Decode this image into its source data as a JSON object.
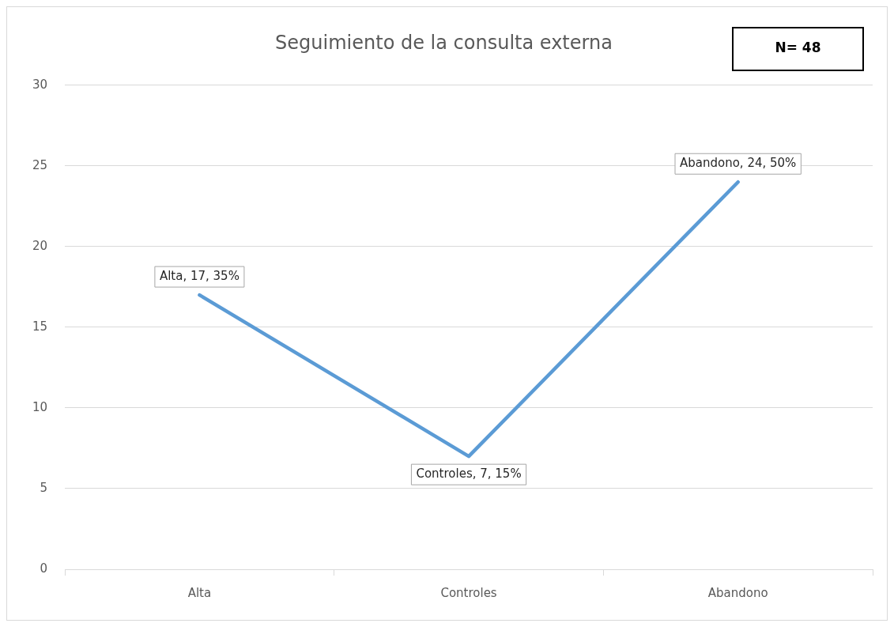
{
  "chart_data": {
    "type": "line",
    "title": "Seguimiento de la consulta externa",
    "categories": [
      "Alta",
      "Controles",
      "Abandono"
    ],
    "values": [
      17,
      7,
      24
    ],
    "color": "#5b9bd5",
    "value_labels": [
      "Alta, 17, 35%",
      "Controles, 7, 15%",
      "Abandono, 24, 50%"
    ],
    "annotations": [
      "N= 48"
    ],
    "ylim": [
      0,
      30
    ],
    "yticks": [
      0,
      5,
      10,
      15,
      20,
      25,
      30
    ],
    "grid": "y",
    "legend": false,
    "line_style": "solid"
  }
}
